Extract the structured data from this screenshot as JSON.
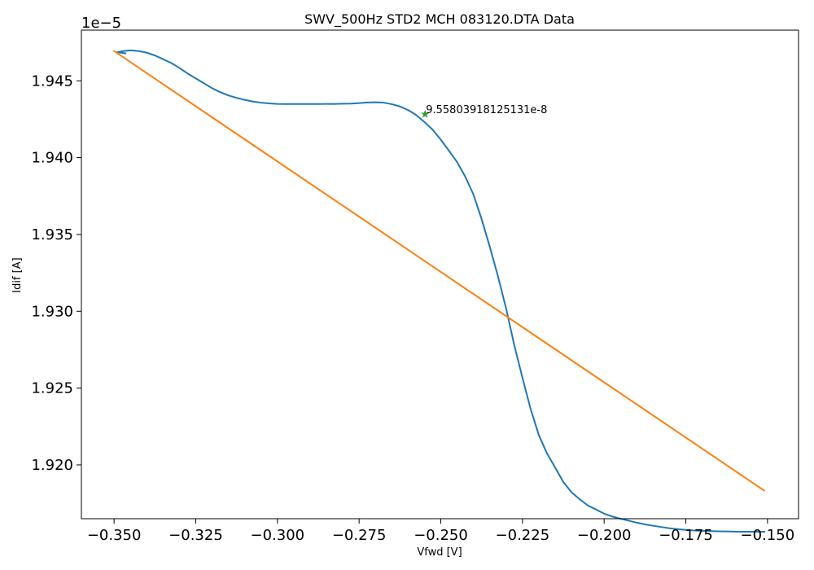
{
  "chart_data": {
    "type": "line",
    "title": "SWV_500Hz STD2 MCH 083120.DTA Data",
    "xlabel": "Vfwd [V]",
    "ylabel": "Idif [A]",
    "y_offset_label": "1e−5",
    "xlim": [
      -0.36,
      -0.1405
    ],
    "ylim": [
      1.9165,
      1.9483
    ],
    "grid": false,
    "x_ticks": [
      -0.35,
      -0.325,
      -0.3,
      -0.275,
      -0.25,
      -0.225,
      -0.2,
      -0.175,
      -0.15
    ],
    "x_tick_labels": [
      "−0.350",
      "−0.325",
      "−0.300",
      "−0.275",
      "−0.250",
      "−0.225",
      "−0.200",
      "−0.175",
      "−0.150"
    ],
    "y_ticks": [
      1.92,
      1.925,
      1.93,
      1.935,
      1.94,
      1.945
    ],
    "y_tick_labels": [
      "1.920",
      "1.925",
      "1.930",
      "1.935",
      "1.940",
      "1.945"
    ],
    "series": [
      {
        "color": "#1f77b4",
        "x": [
          -0.3465,
          -0.349,
          -0.347,
          -0.345,
          -0.3425,
          -0.34,
          -0.3375,
          -0.335,
          -0.3325,
          -0.33,
          -0.3275,
          -0.325,
          -0.3225,
          -0.32,
          -0.3175,
          -0.315,
          -0.3125,
          -0.31,
          -0.3075,
          -0.305,
          -0.3025,
          -0.3,
          -0.2975,
          -0.295,
          -0.2925,
          -0.29,
          -0.2875,
          -0.285,
          -0.2825,
          -0.28,
          -0.2775,
          -0.275,
          -0.2725,
          -0.27,
          -0.2675,
          -0.265,
          -0.2625,
          -0.26,
          -0.2575,
          -0.255,
          -0.2525,
          -0.25,
          -0.2475,
          -0.245,
          -0.2425,
          -0.24,
          -0.2375,
          -0.235,
          -0.2325,
          -0.23,
          -0.2275,
          -0.225,
          -0.2225,
          -0.22,
          -0.2175,
          -0.215,
          -0.2125,
          -0.21,
          -0.2075,
          -0.205,
          -0.2025,
          -0.2,
          -0.1975,
          -0.195,
          -0.1925,
          -0.19,
          -0.1875,
          -0.185,
          -0.1825,
          -0.18,
          -0.1775,
          -0.175,
          -0.1725,
          -0.17,
          -0.1675,
          -0.165,
          -0.1625,
          -0.16,
          -0.1575,
          -0.155,
          -0.1525,
          -0.151
        ],
        "y": [
          1.94679,
          1.94686,
          1.94694,
          1.94698,
          1.94694,
          1.94683,
          1.94665,
          1.94641,
          1.94616,
          1.94584,
          1.94548,
          1.94516,
          1.94484,
          1.94452,
          1.94426,
          1.94405,
          1.94389,
          1.94376,
          1.94365,
          1.94358,
          1.94353,
          1.9435,
          1.94349,
          1.94349,
          1.94349,
          1.94349,
          1.94349,
          1.9435,
          1.9435,
          1.94351,
          1.94352,
          1.94355,
          1.94359,
          1.9436,
          1.94358,
          1.94348,
          1.94333,
          1.9431,
          1.94277,
          1.94232,
          1.94182,
          1.94117,
          1.94045,
          1.93971,
          1.93876,
          1.9376,
          1.936,
          1.9342,
          1.93228,
          1.93018,
          1.92779,
          1.92567,
          1.92364,
          1.92195,
          1.92075,
          1.91983,
          1.91889,
          1.91822,
          1.91777,
          1.91736,
          1.9171,
          1.91683,
          1.91664,
          1.9165,
          1.91637,
          1.91624,
          1.91613,
          1.91604,
          1.91596,
          1.91588,
          1.91582,
          1.91577,
          1.91573,
          1.91571,
          1.91569,
          1.91568,
          1.91567,
          1.91566,
          1.91565,
          1.91565,
          1.91565,
          1.91565
        ]
      },
      {
        "color": "#ff7f0e",
        "x": [
          -0.35,
          -0.151
        ],
        "y": [
          1.94694,
          1.91833
        ]
      }
    ],
    "annotations": [
      {
        "x": -0.2548,
        "y": 1.94283,
        "text": "9.55803918125131e-8",
        "marker": "star",
        "color": "#2ca02c"
      }
    ]
  }
}
